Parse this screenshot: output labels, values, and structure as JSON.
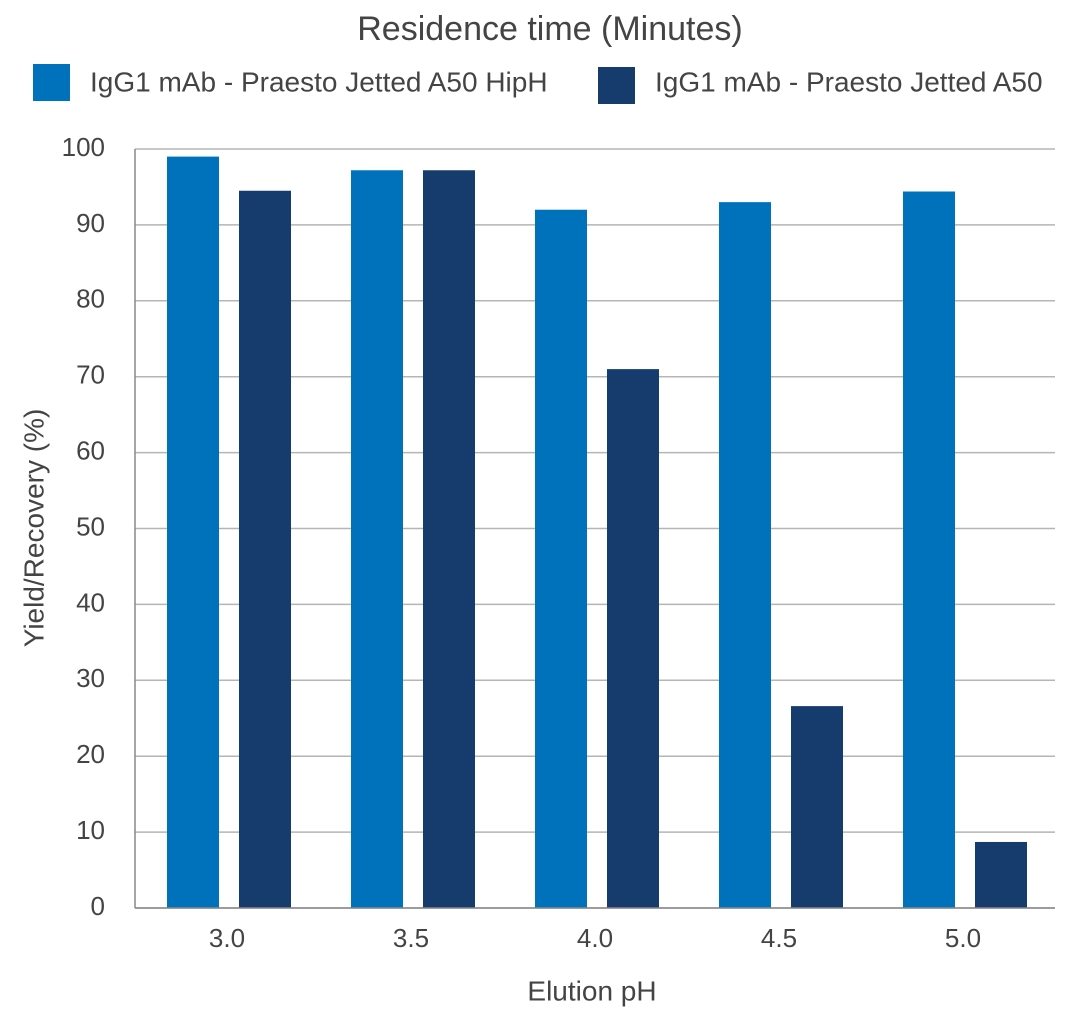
{
  "chart_data": {
    "type": "bar",
    "title": "Residence time (Minutes)",
    "x_label": "Elution pH",
    "y_label": "Yield/Recovery (%)",
    "categories": [
      "3.0",
      "3.5",
      "4.0",
      "4.5",
      "5.0"
    ],
    "series": [
      {
        "name": "IgG1 mAb - Praesto Jetted A50 HipH",
        "color": "#0072bc",
        "values": [
          99,
          97.2,
          92,
          93,
          94.4
        ]
      },
      {
        "name": "IgG1 mAb - Praesto Jetted A50",
        "color": "#163c6e",
        "values": [
          94.5,
          97.2,
          71,
          26.6,
          8.7
        ]
      }
    ],
    "ylim": [
      0,
      100
    ],
    "yticks": [
      0,
      10,
      20,
      30,
      40,
      50,
      60,
      70,
      80,
      90,
      100
    ],
    "grid": true
  }
}
